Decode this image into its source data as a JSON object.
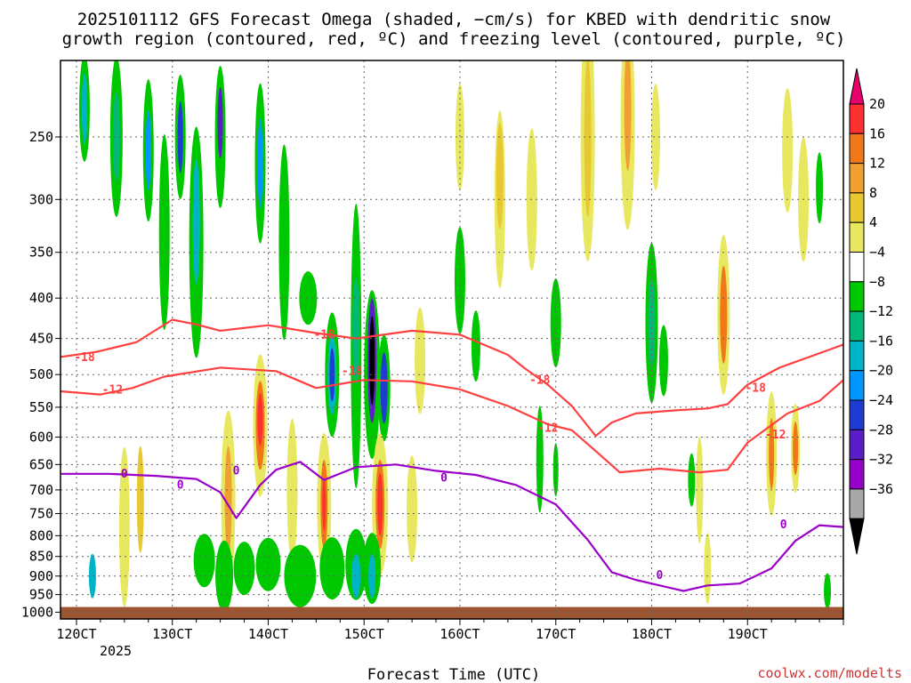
{
  "chart_data": {
    "type": "heatmap",
    "title_lines": [
      "2025101112 GFS Forecast Omega (shaded, −cm/s) for KBED with dendritic snow",
      "growth region (contoured, red, ºC) and freezing level (contoured, purple, ºC)"
    ],
    "xlabel": "Forecast Time (UTC)",
    "x_ticks": [
      "120CT",
      "130CT",
      "140CT",
      "150CT",
      "160CT",
      "170CT",
      "180CT",
      "190CT"
    ],
    "x_year": "2025",
    "x_range_hours": [
      -4,
      192
    ],
    "y_ticks": [
      250,
      300,
      350,
      400,
      450,
      500,
      550,
      600,
      650,
      700,
      750,
      800,
      850,
      900,
      950,
      1000
    ],
    "y_unit": "hPa",
    "y_range": [
      200,
      1020
    ],
    "grid": true,
    "credit": "coolwx.com/modelts",
    "colorbar": {
      "labels": [
        "20",
        "16",
        "12",
        "8",
        "4",
        "−4",
        "−8",
        "−12",
        "−16",
        "−20",
        "−24",
        "−28",
        "−32",
        "−36"
      ],
      "colors": [
        "#e8006e",
        "#ff3030",
        "#f07818",
        "#f0a030",
        "#e8c830",
        "#e8e860",
        "#ffffff",
        "#00c800",
        "#00b878",
        "#00b4c8",
        "#0096ff",
        "#1e3cd2",
        "#5a1ec8",
        "#9600c8",
        "#a8a8a8",
        "#000000"
      ]
    },
    "contours": [
      {
        "level": "-18",
        "color": "#ff4040",
        "points": [
          [
            -4,
            475
          ],
          [
            5,
            468
          ],
          [
            15,
            455
          ],
          [
            24,
            426
          ],
          [
            30,
            432
          ],
          [
            36,
            440
          ],
          [
            48,
            433
          ],
          [
            60,
            443
          ],
          [
            70,
            450
          ],
          [
            84,
            440
          ],
          [
            96,
            445
          ],
          [
            108,
            472
          ],
          [
            112,
            490
          ],
          [
            118,
            515
          ],
          [
            124,
            548
          ],
          [
            130,
            598
          ],
          [
            134,
            575
          ],
          [
            140,
            560
          ],
          [
            150,
            555
          ],
          [
            158,
            552
          ],
          [
            163,
            545
          ],
          [
            168,
            515
          ],
          [
            176,
            490
          ],
          [
            188,
            466
          ],
          [
            192,
            458
          ]
        ]
      },
      {
        "level": "-12",
        "color": "#ff4040",
        "points": [
          [
            -4,
            525
          ],
          [
            6,
            530
          ],
          [
            14,
            520
          ],
          [
            22,
            503
          ],
          [
            36,
            490
          ],
          [
            50,
            495
          ],
          [
            60,
            520
          ],
          [
            72,
            508
          ],
          [
            84,
            510
          ],
          [
            96,
            522
          ],
          [
            108,
            548
          ],
          [
            118,
            578
          ],
          [
            124,
            588
          ],
          [
            130,
            625
          ],
          [
            136,
            665
          ],
          [
            146,
            658
          ],
          [
            156,
            665
          ],
          [
            163,
            660
          ],
          [
            168,
            610
          ],
          [
            178,
            560
          ],
          [
            186,
            540
          ],
          [
            192,
            508
          ]
        ]
      },
      {
        "level": "0",
        "color": "#9b00c8",
        "points": [
          [
            -4,
            668
          ],
          [
            8,
            668
          ],
          [
            20,
            672
          ],
          [
            30,
            678
          ],
          [
            36,
            705
          ],
          [
            40,
            760
          ],
          [
            46,
            690
          ],
          [
            50,
            660
          ],
          [
            56,
            645
          ],
          [
            62,
            680
          ],
          [
            70,
            655
          ],
          [
            80,
            650
          ],
          [
            90,
            662
          ],
          [
            100,
            670
          ],
          [
            110,
            690
          ],
          [
            120,
            730
          ],
          [
            128,
            810
          ],
          [
            134,
            890
          ],
          [
            140,
            910
          ],
          [
            146,
            925
          ],
          [
            152,
            940
          ],
          [
            158,
            925
          ],
          [
            166,
            920
          ],
          [
            174,
            880
          ],
          [
            180,
            812
          ],
          [
            186,
            776
          ],
          [
            192,
            780
          ]
        ]
      }
    ],
    "contour_labels": [
      {
        "text": "-18",
        "x": 2,
        "y": 476
      },
      {
        "text": "-18",
        "x": 62,
        "y": 445
      },
      {
        "text": "-18",
        "x": 69,
        "y": 495
      },
      {
        "text": "-18",
        "x": 116,
        "y": 508
      },
      {
        "text": "-18",
        "x": 170,
        "y": 520
      },
      {
        "text": "-12",
        "x": 9,
        "y": 523
      },
      {
        "text": "-12",
        "x": 118,
        "y": 585
      },
      {
        "text": "-12",
        "x": 175,
        "y": 596
      },
      {
        "text": "0",
        "x": 12,
        "y": 668
      },
      {
        "text": "0",
        "x": 26,
        "y": 690
      },
      {
        "text": "0",
        "x": 40,
        "y": 662
      },
      {
        "text": "0",
        "x": 92,
        "y": 676
      },
      {
        "text": "0",
        "x": 146,
        "y": 898
      },
      {
        "text": "0",
        "x": 177,
        "y": 775
      }
    ]
  },
  "colors": {
    "terrain": "#9c5530",
    "grid": "#666666",
    "frame": "#000000"
  }
}
